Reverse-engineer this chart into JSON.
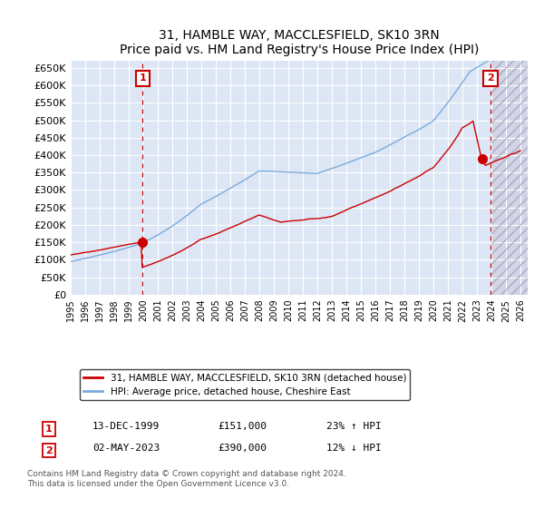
{
  "title": "31, HAMBLE WAY, MACCLESFIELD, SK10 3RN",
  "subtitle": "Price paid vs. HM Land Registry's House Price Index (HPI)",
  "ylim": [
    0,
    670000
  ],
  "yticks": [
    0,
    50000,
    100000,
    150000,
    200000,
    250000,
    300000,
    350000,
    400000,
    450000,
    500000,
    550000,
    600000,
    650000
  ],
  "xlim_start": 1995.0,
  "xlim_end": 2026.5,
  "background_color": "#ffffff",
  "plot_bg_color": "#dce6f5",
  "grid_color": "#ffffff",
  "sale1_x": 1999.96,
  "sale1_price": 151000,
  "sale1_label": "1",
  "sale1_date_str": "13-DEC-1999",
  "sale1_hpi": "23% ↑ HPI",
  "sale2_x": 2023.35,
  "sale2_price": 390000,
  "sale2_label": "2",
  "sale2_date_str": "02-MAY-2023",
  "sale2_hpi": "12% ↓ HPI",
  "vline2_x": 2023.95,
  "legend_line1": "31, HAMBLE WAY, MACCLESFIELD, SK10 3RN (detached house)",
  "legend_line2": "HPI: Average price, detached house, Cheshire East",
  "footer1": "Contains HM Land Registry data © Crown copyright and database right 2024.",
  "footer2": "This data is licensed under the Open Government Licence v3.0.",
  "line_red": "#cc0000",
  "line_blue": "#7aabdc",
  "future_start": 2024.0
}
